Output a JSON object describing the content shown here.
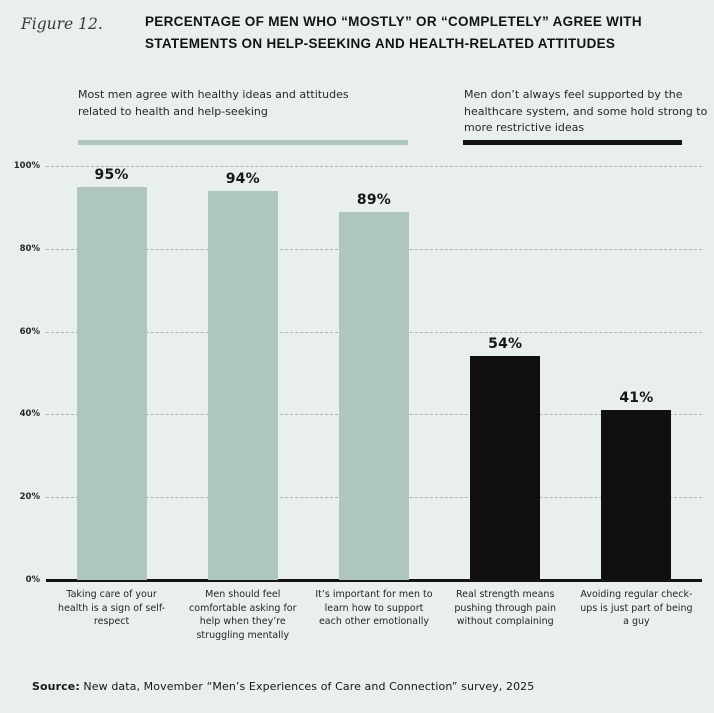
{
  "figure": {
    "label": "Figure 12.",
    "title_line1": "PERCENTAGE OF MEN WHO “MOSTLY” OR “COMPLETELY” AGREE WITH",
    "title_line2": "STATEMENTS ON HELP-SEEKING AND HEALTH-RELATED ATTITUDES"
  },
  "annotations": {
    "left": {
      "text": "Most men agree with healthy ideas and attitudes related to health and help-seeking",
      "underline_color": "#aec6bb"
    },
    "right": {
      "text": "Men don’t always feel supported by the healthcare system, and some hold strong to more restrictive ideas",
      "underline_color": "#131313"
    }
  },
  "chart_data": {
    "type": "bar",
    "title": "Percentage of men who “mostly” or “completely” agree with statements on help-seeking and health-related attitudes",
    "categories": [
      "Taking care of your health is a sign of self-respect",
      "Men should feel comfortable asking for help when they’re struggling mentally",
      "It’s important for men to learn how to support each other emotionally",
      "Real strength means pushing through pain without complaining",
      "Avoiding regular check-ups is just part of being a guy"
    ],
    "values": [
      95,
      94,
      89,
      54,
      41
    ],
    "value_labels": [
      "95%",
      "94%",
      "89%",
      "54%",
      "41%"
    ],
    "bar_colors": [
      "#aec6bb",
      "#aec6bb",
      "#aec6bb",
      "#101010",
      "#101010"
    ],
    "groups": [
      {
        "label": "Most men agree with healthy ideas and attitudes related to health and help-seeking",
        "bars": [
          0,
          1,
          2
        ],
        "color": "#aec6bb"
      },
      {
        "label": "Men don’t always feel supported by the healthcare system, and some hold strong to more restrictive ideas",
        "bars": [
          3,
          4
        ],
        "color": "#131313"
      }
    ],
    "xlabel": "",
    "ylabel": "",
    "ylim": [
      0,
      100
    ],
    "y_ticks": [
      {
        "label": "100%",
        "value": 100
      },
      {
        "label": "80%",
        "value": 80
      },
      {
        "label": "60%",
        "value": 60
      },
      {
        "label": "40%",
        "value": 40
      },
      {
        "label": "20%",
        "value": 20
      },
      {
        "label": "0%",
        "value": 0
      }
    ],
    "grid": "horizontal-dashed",
    "legend_position": "none"
  },
  "source": {
    "prefix": "Source:",
    "text": " New data, Movember “Men’s Experiences of Care and Connection” survey, 2025"
  }
}
